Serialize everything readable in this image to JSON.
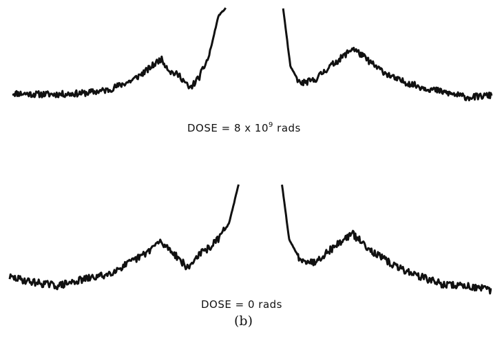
{
  "figure": {
    "panel_label": "(b)"
  },
  "chart_data": [
    {
      "type": "line",
      "label_prefix": "DOSE = 8 x 10",
      "label_exponent": "9",
      "label_suffix": " rads",
      "gap": [
        0.445,
        0.565
      ],
      "x": [
        0.0,
        0.05,
        0.1,
        0.15,
        0.2,
        0.25,
        0.28,
        0.31,
        0.33,
        0.35,
        0.37,
        0.39,
        0.41,
        0.43,
        0.445,
        0.565,
        0.58,
        0.6,
        0.63,
        0.66,
        0.69,
        0.71,
        0.73,
        0.76,
        0.8,
        0.85,
        0.9,
        0.95,
        1.0
      ],
      "y": [
        0.21,
        0.2,
        0.2,
        0.21,
        0.24,
        0.33,
        0.42,
        0.53,
        0.41,
        0.37,
        0.25,
        0.36,
        0.55,
        0.93,
        1.0,
        1.0,
        0.46,
        0.3,
        0.33,
        0.45,
        0.55,
        0.63,
        0.56,
        0.45,
        0.34,
        0.27,
        0.22,
        0.17,
        0.19
      ],
      "color": "#111111"
    },
    {
      "type": "line",
      "label_prefix": "DOSE = 0 rads",
      "label_exponent": "",
      "label_suffix": "",
      "gap": [
        0.475,
        0.565
      ],
      "x": [
        0.0,
        0.05,
        0.1,
        0.15,
        0.2,
        0.25,
        0.28,
        0.31,
        0.33,
        0.35,
        0.37,
        0.39,
        0.41,
        0.43,
        0.455,
        0.475,
        0.565,
        0.58,
        0.6,
        0.63,
        0.66,
        0.69,
        0.71,
        0.73,
        0.76,
        0.8,
        0.85,
        0.9,
        0.95,
        1.0
      ],
      "y": [
        0.24,
        0.2,
        0.17,
        0.22,
        0.26,
        0.36,
        0.43,
        0.53,
        0.48,
        0.4,
        0.31,
        0.42,
        0.47,
        0.54,
        0.68,
        1.0,
        1.0,
        0.55,
        0.4,
        0.36,
        0.45,
        0.54,
        0.6,
        0.53,
        0.43,
        0.33,
        0.25,
        0.18,
        0.17,
        0.13
      ],
      "color": "#111111"
    }
  ]
}
